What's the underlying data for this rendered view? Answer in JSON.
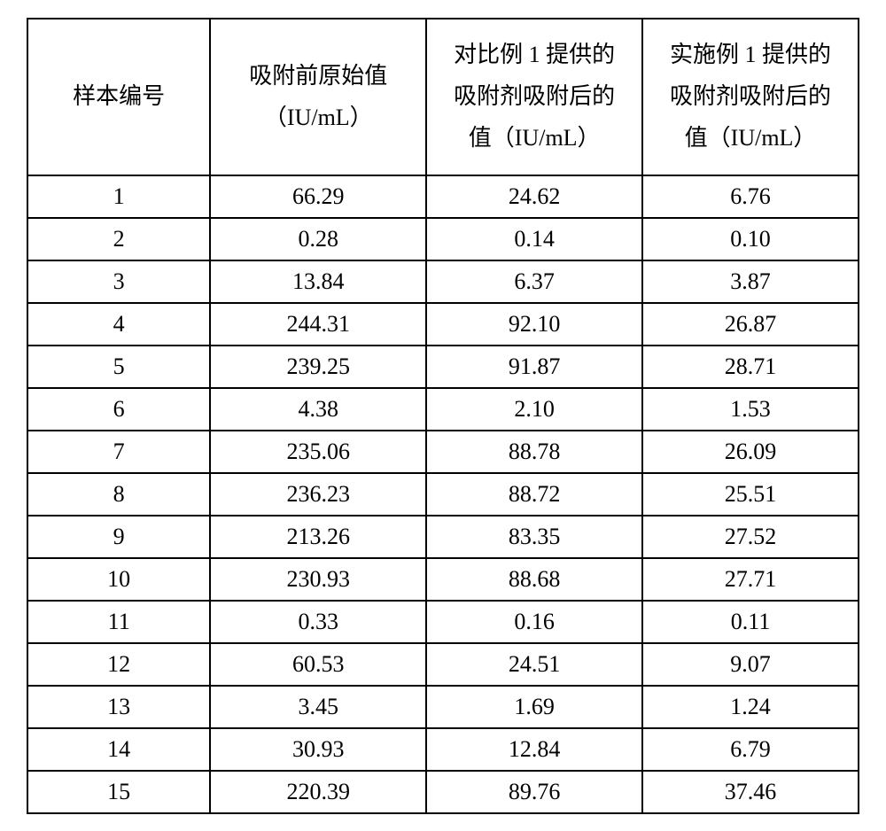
{
  "table": {
    "type": "table",
    "background_color": "#ffffff",
    "border_color": "#000000",
    "text_color": "#000000",
    "font_family": "SimSun",
    "header_fontsize": 26,
    "body_fontsize": 26,
    "border_width": 2,
    "header_row_height": 175,
    "body_row_height": 46,
    "column_widths_pct": [
      22,
      26,
      26,
      26
    ],
    "columns": [
      {
        "line1": "样本编号",
        "line2": ""
      },
      {
        "line1": "吸附前原始值",
        "line2": "（IU/mL）"
      },
      {
        "line1": "对比例 1 提供的",
        "line2": "吸附剂吸附后的",
        "line3": "值（IU/mL）"
      },
      {
        "line1": "实施例 1 提供的",
        "line2": "吸附剂吸附后的",
        "line3": "值（IU/mL）"
      }
    ],
    "rows": [
      [
        "1",
        "66.29",
        "24.62",
        "6.76"
      ],
      [
        "2",
        "0.28",
        "0.14",
        "0.10"
      ],
      [
        "3",
        "13.84",
        "6.37",
        "3.87"
      ],
      [
        "4",
        "244.31",
        "92.10",
        "26.87"
      ],
      [
        "5",
        "239.25",
        "91.87",
        "28.71"
      ],
      [
        "6",
        "4.38",
        "2.10",
        "1.53"
      ],
      [
        "7",
        "235.06",
        "88.78",
        "26.09"
      ],
      [
        "8",
        "236.23",
        "88.72",
        "25.51"
      ],
      [
        "9",
        "213.26",
        "83.35",
        "27.52"
      ],
      [
        "10",
        "230.93",
        "88.68",
        "27.71"
      ],
      [
        "11",
        "0.33",
        "0.16",
        "0.11"
      ],
      [
        "12",
        "60.53",
        "24.51",
        "9.07"
      ],
      [
        "13",
        "3.45",
        "1.69",
        "1.24"
      ],
      [
        "14",
        "30.93",
        "12.84",
        "6.79"
      ],
      [
        "15",
        "220.39",
        "89.76",
        "37.46"
      ]
    ]
  }
}
